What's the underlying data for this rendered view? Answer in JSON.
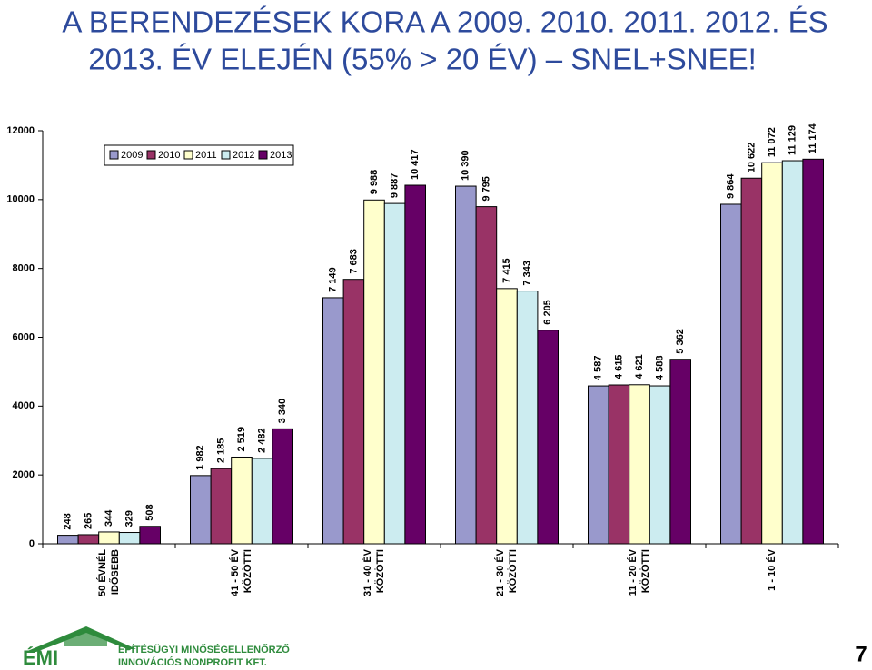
{
  "chart_data": {
    "type": "bar",
    "title": [
      "A BERENDEZÉSEK KORA A 2009. 2010. 2011. 2012. ÉS",
      "2013. ÉV ELEJÉN  (55% > 20 ÉV) – SNEL+SNEE!"
    ],
    "categories": [
      [
        "50 ÉVNÉL",
        "IDŐSEBB"
      ],
      [
        "41 - 50 ÉV",
        "KÖZÖTTI"
      ],
      [
        "31 - 40 ÉV",
        "KÖZÖTTI"
      ],
      [
        "21 - 30 ÉV",
        "KÖZÖTTI"
      ],
      [
        "11 - 20 ÉV",
        "KÖZÖTTI"
      ],
      [
        "1 - 10 ÉV"
      ]
    ],
    "series": [
      {
        "name": "2009",
        "color": "#9999cc",
        "values": [
          248,
          1982,
          7149,
          10390,
          4587,
          9864
        ],
        "value_labels": [
          "248",
          "1 982",
          "7 149",
          "10 390",
          "4 587",
          "9 864"
        ]
      },
      {
        "name": "2010",
        "color": "#993366",
        "values": [
          265,
          2185,
          7683,
          9795,
          4615,
          10622
        ],
        "value_labels": [
          "265",
          "2 185",
          "7 683",
          "9 795",
          "4 615",
          "10 622"
        ]
      },
      {
        "name": "2011",
        "color": "#ffffcc",
        "values": [
          344,
          2519,
          9988,
          7415,
          4621,
          11072
        ],
        "value_labels": [
          "344",
          "2 519",
          "9 988",
          "7 415",
          "4 621",
          "11 072"
        ]
      },
      {
        "name": "2012",
        "color": "#ccecf0",
        "values": [
          329,
          2482,
          9887,
          7343,
          4588,
          11129
        ],
        "value_labels": [
          "329",
          "2 482",
          "9 887",
          "7 343",
          "4 588",
          "11 129"
        ]
      },
      {
        "name": "2013",
        "color": "#660066",
        "values": [
          508,
          3340,
          10417,
          6205,
          5362,
          11174
        ],
        "value_labels": [
          "508",
          "3 340",
          "10 417",
          "6 205",
          "5 362",
          "11 174"
        ]
      }
    ],
    "ylim": [
      0,
      12000
    ],
    "yticks": [
      0,
      2000,
      4000,
      6000,
      8000,
      10000,
      12000
    ],
    "grid": false,
    "legend": "upper-left"
  },
  "footer": {
    "logo": "ÉMI",
    "company": [
      "ÉPÍTÉSÜGYI MINŐSÉGELLENŐRZŐ",
      "INNOVÁCIÓS NONPROFIT KFT."
    ],
    "page_number": "7"
  }
}
